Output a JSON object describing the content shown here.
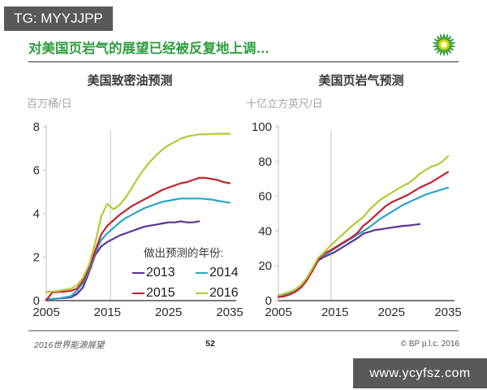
{
  "watermark_top": {
    "label": "TG: MYYJJPP"
  },
  "watermark_bottom": {
    "label": "www.ycyfsz.com"
  },
  "slide": {
    "title": "对美国页岩气的展望已经被反复地上调…",
    "title_color": "#2e9e40",
    "footer_left": "2016世界能源展望",
    "page_number": "52",
    "footer_right": "© BP p.l.c. 2016"
  },
  "logo": {
    "name": "BP",
    "colors": {
      "outer": "#00821e",
      "mid": "#97c83d",
      "inner": "#ffe600",
      "core": "#ffffff"
    }
  },
  "legend": {
    "title": "做出预测的年份:",
    "items": [
      {
        "label": "2013",
        "color": "#5c3292"
      },
      {
        "label": "2014",
        "color": "#2ba3c6"
      },
      {
        "label": "2015",
        "color": "#c2232e"
      },
      {
        "label": "2016",
        "color": "#b5c934"
      }
    ]
  },
  "chart_data": [
    {
      "type": "line",
      "title": "美国致密油预测",
      "ylabel": "百万桶/日",
      "xlim": [
        2005,
        2035
      ],
      "ylim": [
        0,
        8
      ],
      "x_ticks": [
        2005,
        2015,
        2025,
        2035
      ],
      "y_ticks": [
        0,
        2,
        4,
        6,
        8
      ],
      "marker_year": 2015.5,
      "grid": false,
      "legend_position": "inside-bottom-right",
      "series": [
        {
          "name": "2013",
          "color": "#5c3292",
          "x_start": 2005,
          "values": [
            0.05,
            0.07,
            0.1,
            0.12,
            0.15,
            0.3,
            0.6,
            1.3,
            2.1,
            2.5,
            2.7,
            2.85,
            3.0,
            3.1,
            3.2,
            3.3,
            3.4,
            3.45,
            3.5,
            3.55,
            3.6,
            3.6,
            3.65,
            3.6,
            3.6,
            3.65
          ]
        },
        {
          "name": "2014",
          "color": "#2ba3c6",
          "x_start": 2005,
          "values": [
            0.05,
            0.08,
            0.1,
            0.15,
            0.2,
            0.45,
            0.8,
            1.4,
            2.2,
            2.8,
            3.1,
            3.35,
            3.6,
            3.8,
            3.95,
            4.1,
            4.25,
            4.35,
            4.45,
            4.55,
            4.6,
            4.65,
            4.7,
            4.7,
            4.7,
            4.7,
            4.68,
            4.65,
            4.6,
            4.55,
            4.5
          ]
        },
        {
          "name": "2015",
          "color": "#c2232e",
          "x_start": 2005,
          "values": [
            0.02,
            0.38,
            0.4,
            0.42,
            0.45,
            0.55,
            0.9,
            1.5,
            2.3,
            3.05,
            3.45,
            3.7,
            3.95,
            4.15,
            4.35,
            4.5,
            4.65,
            4.8,
            4.95,
            5.1,
            5.2,
            5.3,
            5.4,
            5.45,
            5.55,
            5.65,
            5.65,
            5.6,
            5.55,
            5.45,
            5.4
          ]
        },
        {
          "name": "2016",
          "color": "#b5c934",
          "x_start": 2005,
          "values": [
            0.4,
            0.42,
            0.45,
            0.5,
            0.55,
            0.7,
            1.05,
            1.65,
            2.65,
            3.9,
            4.45,
            4.2,
            4.4,
            4.75,
            5.2,
            5.65,
            6.05,
            6.4,
            6.7,
            6.95,
            7.15,
            7.3,
            7.45,
            7.55,
            7.6,
            7.65,
            7.65,
            7.67,
            7.68,
            7.68,
            7.68
          ]
        }
      ]
    },
    {
      "type": "line",
      "title": "美国页岩气预测",
      "ylabel": "十亿立方英尺/日",
      "xlim": [
        2005,
        2035
      ],
      "ylim": [
        0,
        100
      ],
      "x_ticks": [
        2005,
        2015,
        2025,
        2035
      ],
      "y_ticks": [
        0,
        20,
        40,
        60,
        80,
        100
      ],
      "marker_year": 2014.3,
      "grid": false,
      "legend_position": "none",
      "series": [
        {
          "name": "2013",
          "color": "#5c3292",
          "x_start": 2005,
          "values": [
            3,
            3.5,
            4.5,
            6,
            8,
            12,
            17,
            23,
            25,
            26.5,
            28,
            30,
            32,
            34,
            36,
            38.5,
            39.5,
            40.5,
            41,
            41.5,
            42,
            42.5,
            43,
            43.2,
            43.6,
            44
          ]
        },
        {
          "name": "2014",
          "color": "#2ba3c6",
          "x_start": 2005,
          "values": [
            3,
            3.5,
            4.5,
            6,
            8.5,
            12.5,
            17.5,
            24,
            26,
            28,
            30,
            32,
            34,
            36,
            38,
            40,
            42,
            44.5,
            47,
            49,
            51,
            53,
            55,
            56.5,
            58,
            59.5,
            61,
            62,
            63,
            64,
            65
          ]
        },
        {
          "name": "2015",
          "color": "#c2232e",
          "x_start": 2005,
          "values": [
            2,
            2.5,
            3.5,
            5,
            7.5,
            11.5,
            17,
            23.5,
            27,
            28.5,
            30.5,
            32.5,
            34.5,
            36.5,
            39,
            43,
            45.5,
            48.5,
            51.5,
            54.5,
            56.5,
            58,
            59.5,
            61,
            63,
            65,
            66.5,
            68,
            70,
            72,
            74
          ]
        },
        {
          "name": "2016",
          "color": "#b5c934",
          "x_start": 2005,
          "values": [
            3,
            4,
            5,
            6.5,
            9,
            13,
            18.5,
            24.5,
            27.5,
            31,
            34,
            37,
            40,
            43,
            45.5,
            48,
            52,
            55,
            58,
            60,
            62,
            64,
            66,
            67.5,
            70,
            73,
            75,
            77,
            78,
            80,
            83
          ]
        }
      ]
    }
  ]
}
